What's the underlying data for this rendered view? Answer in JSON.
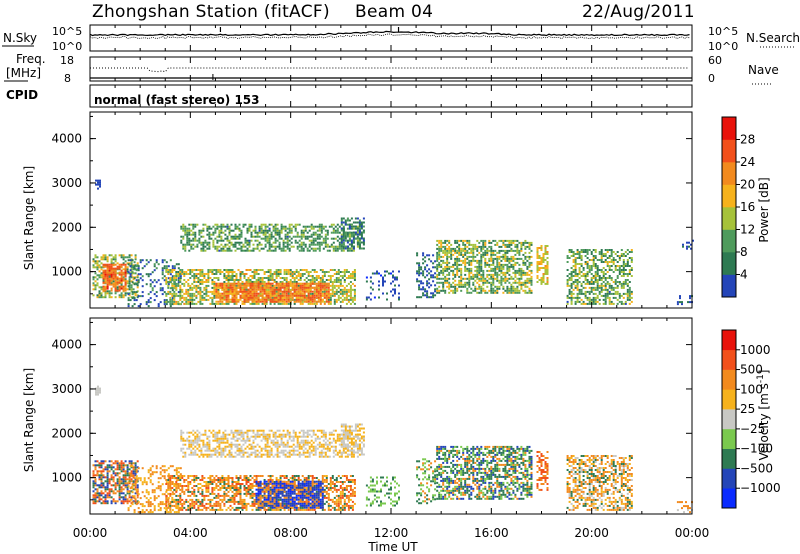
{
  "header": {
    "station": "Zhongshan Station (fitACF)",
    "beam": "Beam 04",
    "date": "22/Aug/2011"
  },
  "top_panels": {
    "nsky_label": "N.Sky",
    "nsky_ticks": [
      "10^5",
      "10^0"
    ],
    "nsearch_label": "N.Search",
    "nsearch_ticks": [
      "10^5",
      "10^0"
    ],
    "freq_label": "Freq.",
    "freq_unit": "[MHz]",
    "freq_ticks": [
      "18",
      "8"
    ],
    "nave_label": "Nave",
    "nave_ticks": [
      "60",
      "0"
    ],
    "cpid_label": "CPID",
    "cpid_text": "normal (fast stereo) 153"
  },
  "colors": {
    "power": [
      "#0a2bff",
      "#2445b8",
      "#2e7a52",
      "#4f9b5c",
      "#a6c23a",
      "#f6b21c",
      "#f28a1e",
      "#f2501b",
      "#e8120b"
    ],
    "velocity": [
      "#e8120b",
      "#f2501b",
      "#f28a1e",
      "#f6b21c",
      "#c8c8c4",
      "#7ac94e",
      "#2e7a52",
      "#2445b8",
      "#0a2bff"
    ],
    "line": "#000000"
  },
  "chart_data": [
    {
      "type": "heatmap",
      "name": "power",
      "xlabel": "",
      "ylabel": "Slant Range [km]",
      "colorbar_label": "Power [dB]",
      "colorbar_ticks": [
        "28",
        "24",
        "20",
        "16",
        "12",
        "8",
        "4"
      ],
      "colorbar_range": [
        0,
        32
      ],
      "y_ticks": [
        "4000",
        "3000",
        "2000",
        "1000"
      ],
      "ylim": [
        180,
        4600
      ],
      "xlim": [
        0,
        24
      ],
      "regions": [
        {
          "t0": 0.1,
          "t1": 1.9,
          "r0": 400,
          "r1": 1350,
          "v": 15,
          "s": 6,
          "d": 0.55
        },
        {
          "t0": 0.5,
          "t1": 1.4,
          "r0": 550,
          "r1": 1150,
          "v": 25,
          "s": 4,
          "d": 0.75
        },
        {
          "t0": 1.5,
          "t1": 3.6,
          "r0": 200,
          "r1": 1250,
          "v": 8,
          "s": 4,
          "d": 0.3
        },
        {
          "t0": 3.0,
          "t1": 10.6,
          "r0": 250,
          "r1": 1050,
          "v": 16,
          "s": 6,
          "d": 0.6
        },
        {
          "t0": 5.0,
          "t1": 9.5,
          "r0": 300,
          "r1": 750,
          "v": 24,
          "s": 4,
          "d": 0.85
        },
        {
          "t0": 3.6,
          "t1": 10.8,
          "r0": 1450,
          "r1": 2050,
          "v": 12,
          "s": 5,
          "d": 0.55
        },
        {
          "t0": 10.0,
          "t1": 10.9,
          "r0": 1500,
          "r1": 2200,
          "v": 9,
          "s": 4,
          "d": 0.5
        },
        {
          "t0": 11.0,
          "t1": 12.3,
          "r0": 350,
          "r1": 1000,
          "v": 6,
          "s": 3,
          "d": 0.25
        },
        {
          "t0": 13.0,
          "t1": 13.8,
          "r0": 400,
          "r1": 1400,
          "v": 7,
          "s": 3,
          "d": 0.35
        },
        {
          "t0": 13.8,
          "t1": 17.6,
          "r0": 500,
          "r1": 1700,
          "v": 14,
          "s": 6,
          "d": 0.6
        },
        {
          "t0": 17.8,
          "t1": 18.2,
          "r0": 700,
          "r1": 1600,
          "v": 18,
          "s": 4,
          "d": 0.6
        },
        {
          "t0": 19.0,
          "t1": 21.6,
          "r0": 250,
          "r1": 1500,
          "v": 13,
          "s": 6,
          "d": 0.55
        },
        {
          "t0": 0.2,
          "t1": 0.4,
          "r0": 2850,
          "r1": 3050,
          "v": 6,
          "s": 2,
          "d": 0.6
        },
        {
          "t0": 23.4,
          "t1": 24.0,
          "r0": 200,
          "r1": 450,
          "v": 6,
          "s": 2,
          "d": 0.3
        },
        {
          "t0": 23.6,
          "t1": 24.0,
          "r0": 1450,
          "r1": 1700,
          "v": 7,
          "s": 2,
          "d": 0.4
        }
      ]
    },
    {
      "type": "heatmap",
      "name": "velocity",
      "xlabel": "Time UT",
      "ylabel": "Slant Range [km]",
      "colorbar_label": "Velocity [m s",
      "colorbar_label_sup": "-1",
      "colorbar_label_end": "]",
      "colorbar_ticks": [
        "1000",
        "500",
        "100",
        "25",
        "−25",
        "−100",
        "−500",
        "−1000"
      ],
      "y_ticks": [
        "4000",
        "3000",
        "2000",
        "1000"
      ],
      "x_ticks": [
        "00:00",
        "04:00",
        "08:00",
        "12:00",
        "16:00",
        "20:00",
        "00:00"
      ],
      "ylim": [
        180,
        4600
      ],
      "xlim": [
        0,
        24
      ],
      "regions": [
        {
          "t0": 0.1,
          "t1": 1.9,
          "r0": 400,
          "r1": 1350,
          "c": [
            1,
            2,
            6,
            7
          ],
          "d": 0.65
        },
        {
          "t0": 1.5,
          "t1": 3.6,
          "r0": 200,
          "r1": 1250,
          "c": [
            2,
            3
          ],
          "d": 0.3
        },
        {
          "t0": 3.0,
          "t1": 10.6,
          "r0": 250,
          "r1": 1050,
          "c": [
            1,
            2,
            2,
            3,
            6
          ],
          "d": 0.6
        },
        {
          "t0": 6.6,
          "t1": 9.3,
          "r0": 300,
          "r1": 900,
          "c": [
            8,
            7,
            7,
            2
          ],
          "d": 0.8
        },
        {
          "t0": 3.6,
          "t1": 10.8,
          "r0": 1450,
          "r1": 2050,
          "c": [
            3,
            4,
            4,
            3
          ],
          "d": 0.55
        },
        {
          "t0": 10.0,
          "t1": 10.9,
          "r0": 1500,
          "r1": 2200,
          "c": [
            4,
            4,
            3
          ],
          "d": 0.5
        },
        {
          "t0": 11.0,
          "t1": 12.3,
          "r0": 350,
          "r1": 1000,
          "c": [
            5,
            6
          ],
          "d": 0.25
        },
        {
          "t0": 13.0,
          "t1": 13.8,
          "r0": 400,
          "r1": 1400,
          "c": [
            6,
            5,
            2
          ],
          "d": 0.35
        },
        {
          "t0": 13.8,
          "t1": 17.6,
          "r0": 500,
          "r1": 1700,
          "c": [
            6,
            6,
            7,
            5,
            2
          ],
          "d": 0.6
        },
        {
          "t0": 17.8,
          "t1": 18.2,
          "r0": 700,
          "r1": 1600,
          "c": [
            2,
            1
          ],
          "d": 0.6
        },
        {
          "t0": 19.0,
          "t1": 21.6,
          "r0": 250,
          "r1": 1500,
          "c": [
            2,
            2,
            6,
            4,
            3
          ],
          "d": 0.55
        },
        {
          "t0": 0.2,
          "t1": 0.4,
          "r0": 2850,
          "r1": 3050,
          "c": [
            4
          ],
          "d": 0.5
        },
        {
          "t0": 23.4,
          "t1": 24.0,
          "r0": 200,
          "r1": 450,
          "c": [
            4,
            2
          ],
          "d": 0.3
        }
      ]
    }
  ]
}
